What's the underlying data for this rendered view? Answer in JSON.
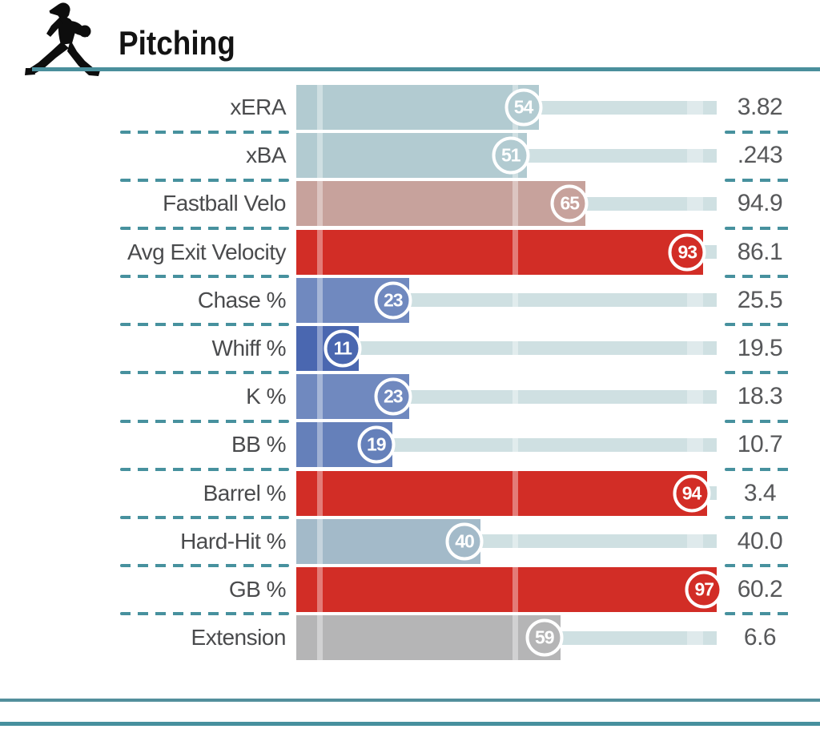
{
  "header": {
    "title": "Pitching",
    "icon": "pitcher-icon"
  },
  "theme": {
    "accent_teal": "#47919E",
    "track_color": "#CFE0E2",
    "track_tick_color": "#DFEAEC",
    "label_color": "#4A4B4D",
    "value_color": "#57585A",
    "title_color": "#131313",
    "bubble_ring": "#FFFFFF"
  },
  "chart_data": {
    "type": "bar",
    "orientation": "horizontal",
    "title": "Pitching",
    "scale": {
      "min": 0,
      "max": 100,
      "ticks": [
        5.5,
        52,
        95
      ]
    },
    "categories": [
      "xERA",
      "xBA",
      "Fastball Velo",
      "Avg Exit Velocity",
      "Chase %",
      "Whiff %",
      "K %",
      "BB %",
      "Barrel %",
      "Hard-Hit %",
      "GB %",
      "Extension"
    ],
    "series": [
      {
        "name": "percentile",
        "values": [
          54,
          51,
          65,
          93,
          23,
          11,
          23,
          19,
          94,
          40,
          97,
          59
        ]
      },
      {
        "name": "stat_value",
        "values": [
          "3.82",
          ".243",
          "94.9",
          "86.1",
          "25.5",
          "19.5",
          "18.3",
          "10.7",
          "3.4",
          "40.0",
          "60.2",
          "6.6"
        ]
      }
    ],
    "rows": [
      {
        "label": "xERA",
        "percentile": 54,
        "value": "3.82",
        "color": "#B2CBD1"
      },
      {
        "label": "xBA",
        "percentile": 51,
        "value": ".243",
        "color": "#B2CBD1"
      },
      {
        "label": "Fastball Velo",
        "percentile": 65,
        "value": "94.9",
        "color": "#C7A29C"
      },
      {
        "label": "Avg Exit Velocity",
        "percentile": 93,
        "value": "86.1",
        "color": "#D22D26"
      },
      {
        "label": "Chase %",
        "percentile": 23,
        "value": "25.5",
        "color": "#7089BF"
      },
      {
        "label": "Whiff %",
        "percentile": 11,
        "value": "19.5",
        "color": "#4A67B0"
      },
      {
        "label": "K %",
        "percentile": 23,
        "value": "18.3",
        "color": "#7089BF"
      },
      {
        "label": "BB %",
        "percentile": 19,
        "value": "10.7",
        "color": "#6580BA"
      },
      {
        "label": "Barrel %",
        "percentile": 94,
        "value": "3.4",
        "color": "#D22D26"
      },
      {
        "label": "Hard-Hit %",
        "percentile": 40,
        "value": "40.0",
        "color": "#A3BAC9"
      },
      {
        "label": "GB %",
        "percentile": 97,
        "value": "60.2",
        "color": "#D22D26"
      },
      {
        "label": "Extension",
        "percentile": 59,
        "value": "6.6",
        "color": "#B5B5B6"
      }
    ]
  }
}
